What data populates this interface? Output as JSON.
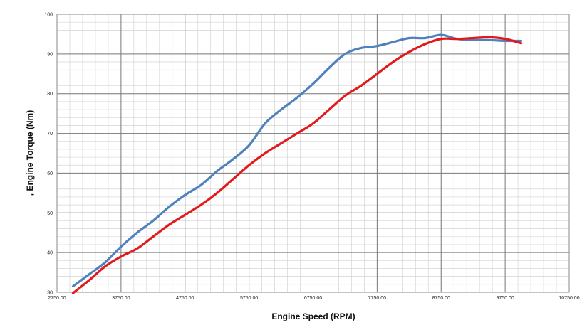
{
  "chart_data": {
    "type": "line",
    "title": "",
    "xlabel": "Engine Speed (RPM)",
    "ylabel": ", Engine Torque (Nm)",
    "xlim": [
      2750,
      10750
    ],
    "ylim": [
      30,
      100
    ],
    "x_major_ticks": [
      2750,
      3750,
      4750,
      5750,
      6750,
      7750,
      8750,
      9750,
      10750
    ],
    "x_tick_labels": [
      "2750.00",
      "3750.00",
      "4750.00",
      "5750.00",
      "6750.00",
      "7750.00",
      "8750.00",
      "9750.00",
      "10750.00"
    ],
    "y_major_ticks": [
      30,
      40,
      50,
      60,
      70,
      80,
      90,
      100
    ],
    "y_tick_labels": [
      "30",
      "40",
      "50",
      "60",
      "70",
      "80",
      "90",
      "100"
    ],
    "x_minor_step": 200,
    "y_minor_step": 2,
    "grid": true,
    "legend": "none",
    "series": [
      {
        "color": "#4f81bd",
        "x": [
          3000,
          3250,
          3500,
          3750,
          4000,
          4250,
          4500,
          4750,
          5000,
          5250,
          5500,
          5750,
          6000,
          6250,
          6500,
          6750,
          7000,
          7250,
          7500,
          7750,
          8000,
          8250,
          8500,
          8750,
          9000,
          9250,
          9500,
          9750,
          10000
        ],
        "y": [
          31.5,
          34.5,
          37.5,
          41.5,
          45,
          48,
          51.5,
          54.5,
          57,
          60.5,
          63.5,
          67,
          72.5,
          76,
          79,
          82.5,
          86.5,
          90,
          91.5,
          92,
          93,
          94,
          94,
          94.8,
          93.8,
          93.5,
          93.5,
          93.3,
          93.3
        ]
      },
      {
        "color": "#e31a1c",
        "x": [
          3000,
          3250,
          3500,
          3750,
          4000,
          4250,
          4500,
          4750,
          5000,
          5250,
          5500,
          5750,
          6000,
          6250,
          6500,
          6750,
          7000,
          7250,
          7500,
          7750,
          8000,
          8250,
          8500,
          8750,
          9000,
          9250,
          9500,
          9750,
          10000
        ],
        "y": [
          29.8,
          33,
          36.5,
          39,
          41,
          44,
          47,
          49.5,
          52,
          55,
          58.5,
          62,
          65,
          67.5,
          70,
          72.5,
          76,
          79.5,
          82,
          85,
          88,
          90.5,
          92.5,
          93.8,
          93.8,
          94,
          94.2,
          93.8,
          92.7
        ]
      }
    ]
  }
}
